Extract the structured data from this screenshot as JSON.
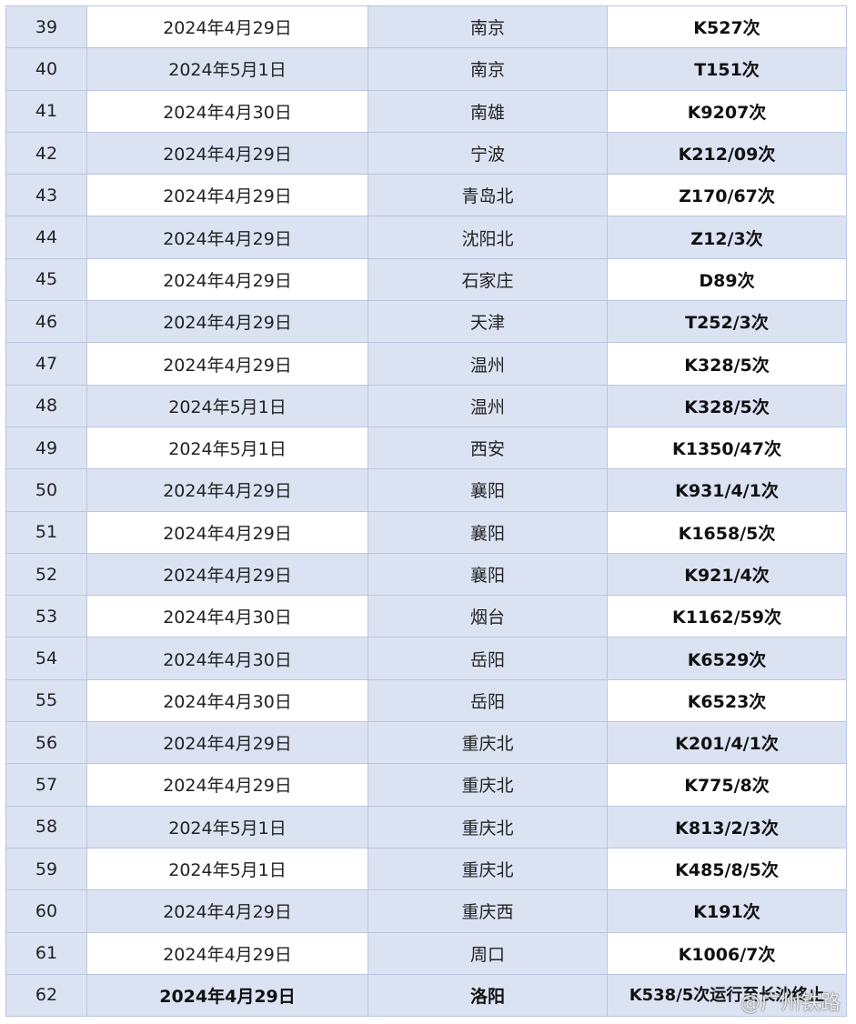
{
  "rows": [
    {
      "no": "39",
      "date": "2024年4月29日",
      "city": "南京",
      "train": "K527次"
    },
    {
      "no": "40",
      "date": "2024年5月1日",
      "city": "南京",
      "train": "T151次"
    },
    {
      "no": "41",
      "date": "2024年4月30日",
      "city": "南雄",
      "train": "K9207次"
    },
    {
      "no": "42",
      "date": "2024年4月29日",
      "city": "宁波",
      "train": "K212/09次"
    },
    {
      "no": "43",
      "date": "2024年4月29日",
      "city": "青岛北",
      "train": "Z170/67次"
    },
    {
      "no": "44",
      "date": "2024年4月29日",
      "city": "沈阳北",
      "train": "Z12/3次"
    },
    {
      "no": "45",
      "date": "2024年4月29日",
      "city": "石家庄",
      "train": "D89次"
    },
    {
      "no": "46",
      "date": "2024年4月29日",
      "city": "天津",
      "train": "T252/3次"
    },
    {
      "no": "47",
      "date": "2024年4月29日",
      "city": "温州",
      "train": "K328/5次"
    },
    {
      "no": "48",
      "date": "2024年5月1日",
      "city": "温州",
      "train": "K328/5次"
    },
    {
      "no": "49",
      "date": "2024年5月1日",
      "city": "西安",
      "train": "K1350/47次"
    },
    {
      "no": "50",
      "date": "2024年4月29日",
      "city": "襄阳",
      "train": "K931/4/1次"
    },
    {
      "no": "51",
      "date": "2024年4月29日",
      "city": "襄阳",
      "train": "K1658/5次"
    },
    {
      "no": "52",
      "date": "2024年4月29日",
      "city": "襄阳",
      "train": "K921/4次"
    },
    {
      "no": "53",
      "date": "2024年4月30日",
      "city": "烟台",
      "train": "K1162/59次"
    },
    {
      "no": "54",
      "date": "2024年4月30日",
      "city": "岳阳",
      "train": "K6529次"
    },
    {
      "no": "55",
      "date": "2024年4月30日",
      "city": "岳阳",
      "train": "K6523次"
    },
    {
      "no": "56",
      "date": "2024年4月29日",
      "city": "重庆北",
      "train": "K201/4/1次"
    },
    {
      "no": "57",
      "date": "2024年4月29日",
      "city": "重庆北",
      "train": "K775/8次"
    },
    {
      "no": "58",
      "date": "2024年5月1日",
      "city": "重庆北",
      "train": "K813/2/3次"
    },
    {
      "no": "59",
      "date": "2024年5月1日",
      "city": "重庆北",
      "train": "K485/8/5次"
    },
    {
      "no": "60",
      "date": "2024年4月29日",
      "city": "重庆西",
      "train": "K191次"
    },
    {
      "no": "61",
      "date": "2024年4月29日",
      "city": "周口",
      "train": "K1006/7次"
    },
    {
      "no": "62",
      "date": "2024年4月29日",
      "city": "洛阳",
      "train": "K538/5次运行至长沙终止"
    }
  ],
  "watermark": "@广州铁路",
  "colors": {
    "cell_blue": "#dbe3f3",
    "cell_white": "#ffffff",
    "border": "#b9c6de"
  }
}
